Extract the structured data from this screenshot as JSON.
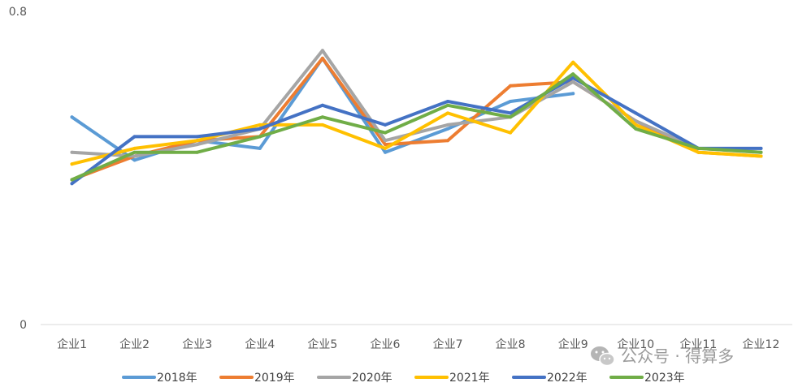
{
  "chart_data": {
    "type": "line",
    "title": "",
    "xlabel": "",
    "ylabel": "",
    "ylim": [
      0,
      0.8
    ],
    "y_ticks": [
      "0",
      "0.8"
    ],
    "grid": false,
    "legend_position": "bottom",
    "categories": [
      "企业1",
      "企业2",
      "企业3",
      "企业4",
      "企业5",
      "企业6",
      "企业7",
      "企业8",
      "企业9",
      "企业10",
      "企业11",
      "企业12"
    ],
    "series": [
      {
        "name": "2018年",
        "color": "#5B9BD5",
        "values": [
          0.53,
          0.42,
          0.47,
          0.45,
          0.68,
          0.44,
          0.5,
          0.57,
          0.59,
          null,
          null,
          null
        ]
      },
      {
        "name": "2019年",
        "color": "#ED7D31",
        "values": [
          0.37,
          0.43,
          0.47,
          0.48,
          0.68,
          0.46,
          0.47,
          0.61,
          0.62,
          0.52,
          0.44,
          0.43
        ]
      },
      {
        "name": "2020年",
        "color": "#A5A5A5",
        "values": [
          0.44,
          0.43,
          0.46,
          0.5,
          0.7,
          0.47,
          0.51,
          0.53,
          0.62,
          0.52,
          0.45,
          0.44
        ]
      },
      {
        "name": "2021年",
        "color": "#FFC000",
        "values": [
          0.41,
          0.45,
          0.47,
          0.51,
          0.51,
          0.45,
          0.54,
          0.49,
          0.67,
          0.51,
          0.44,
          0.43
        ]
      },
      {
        "name": "2022年",
        "color": "#4472C4",
        "values": [
          0.36,
          0.48,
          0.48,
          0.5,
          0.56,
          0.51,
          0.57,
          0.54,
          0.63,
          0.54,
          0.45,
          0.45
        ]
      },
      {
        "name": "2023年",
        "color": "#70AD47",
        "values": [
          0.37,
          0.44,
          0.44,
          0.48,
          0.53,
          0.49,
          0.56,
          0.53,
          0.64,
          0.5,
          0.45,
          0.44
        ]
      }
    ]
  },
  "watermark": {
    "text": "公众号 · 得算多",
    "icon": "wechat-icon"
  }
}
